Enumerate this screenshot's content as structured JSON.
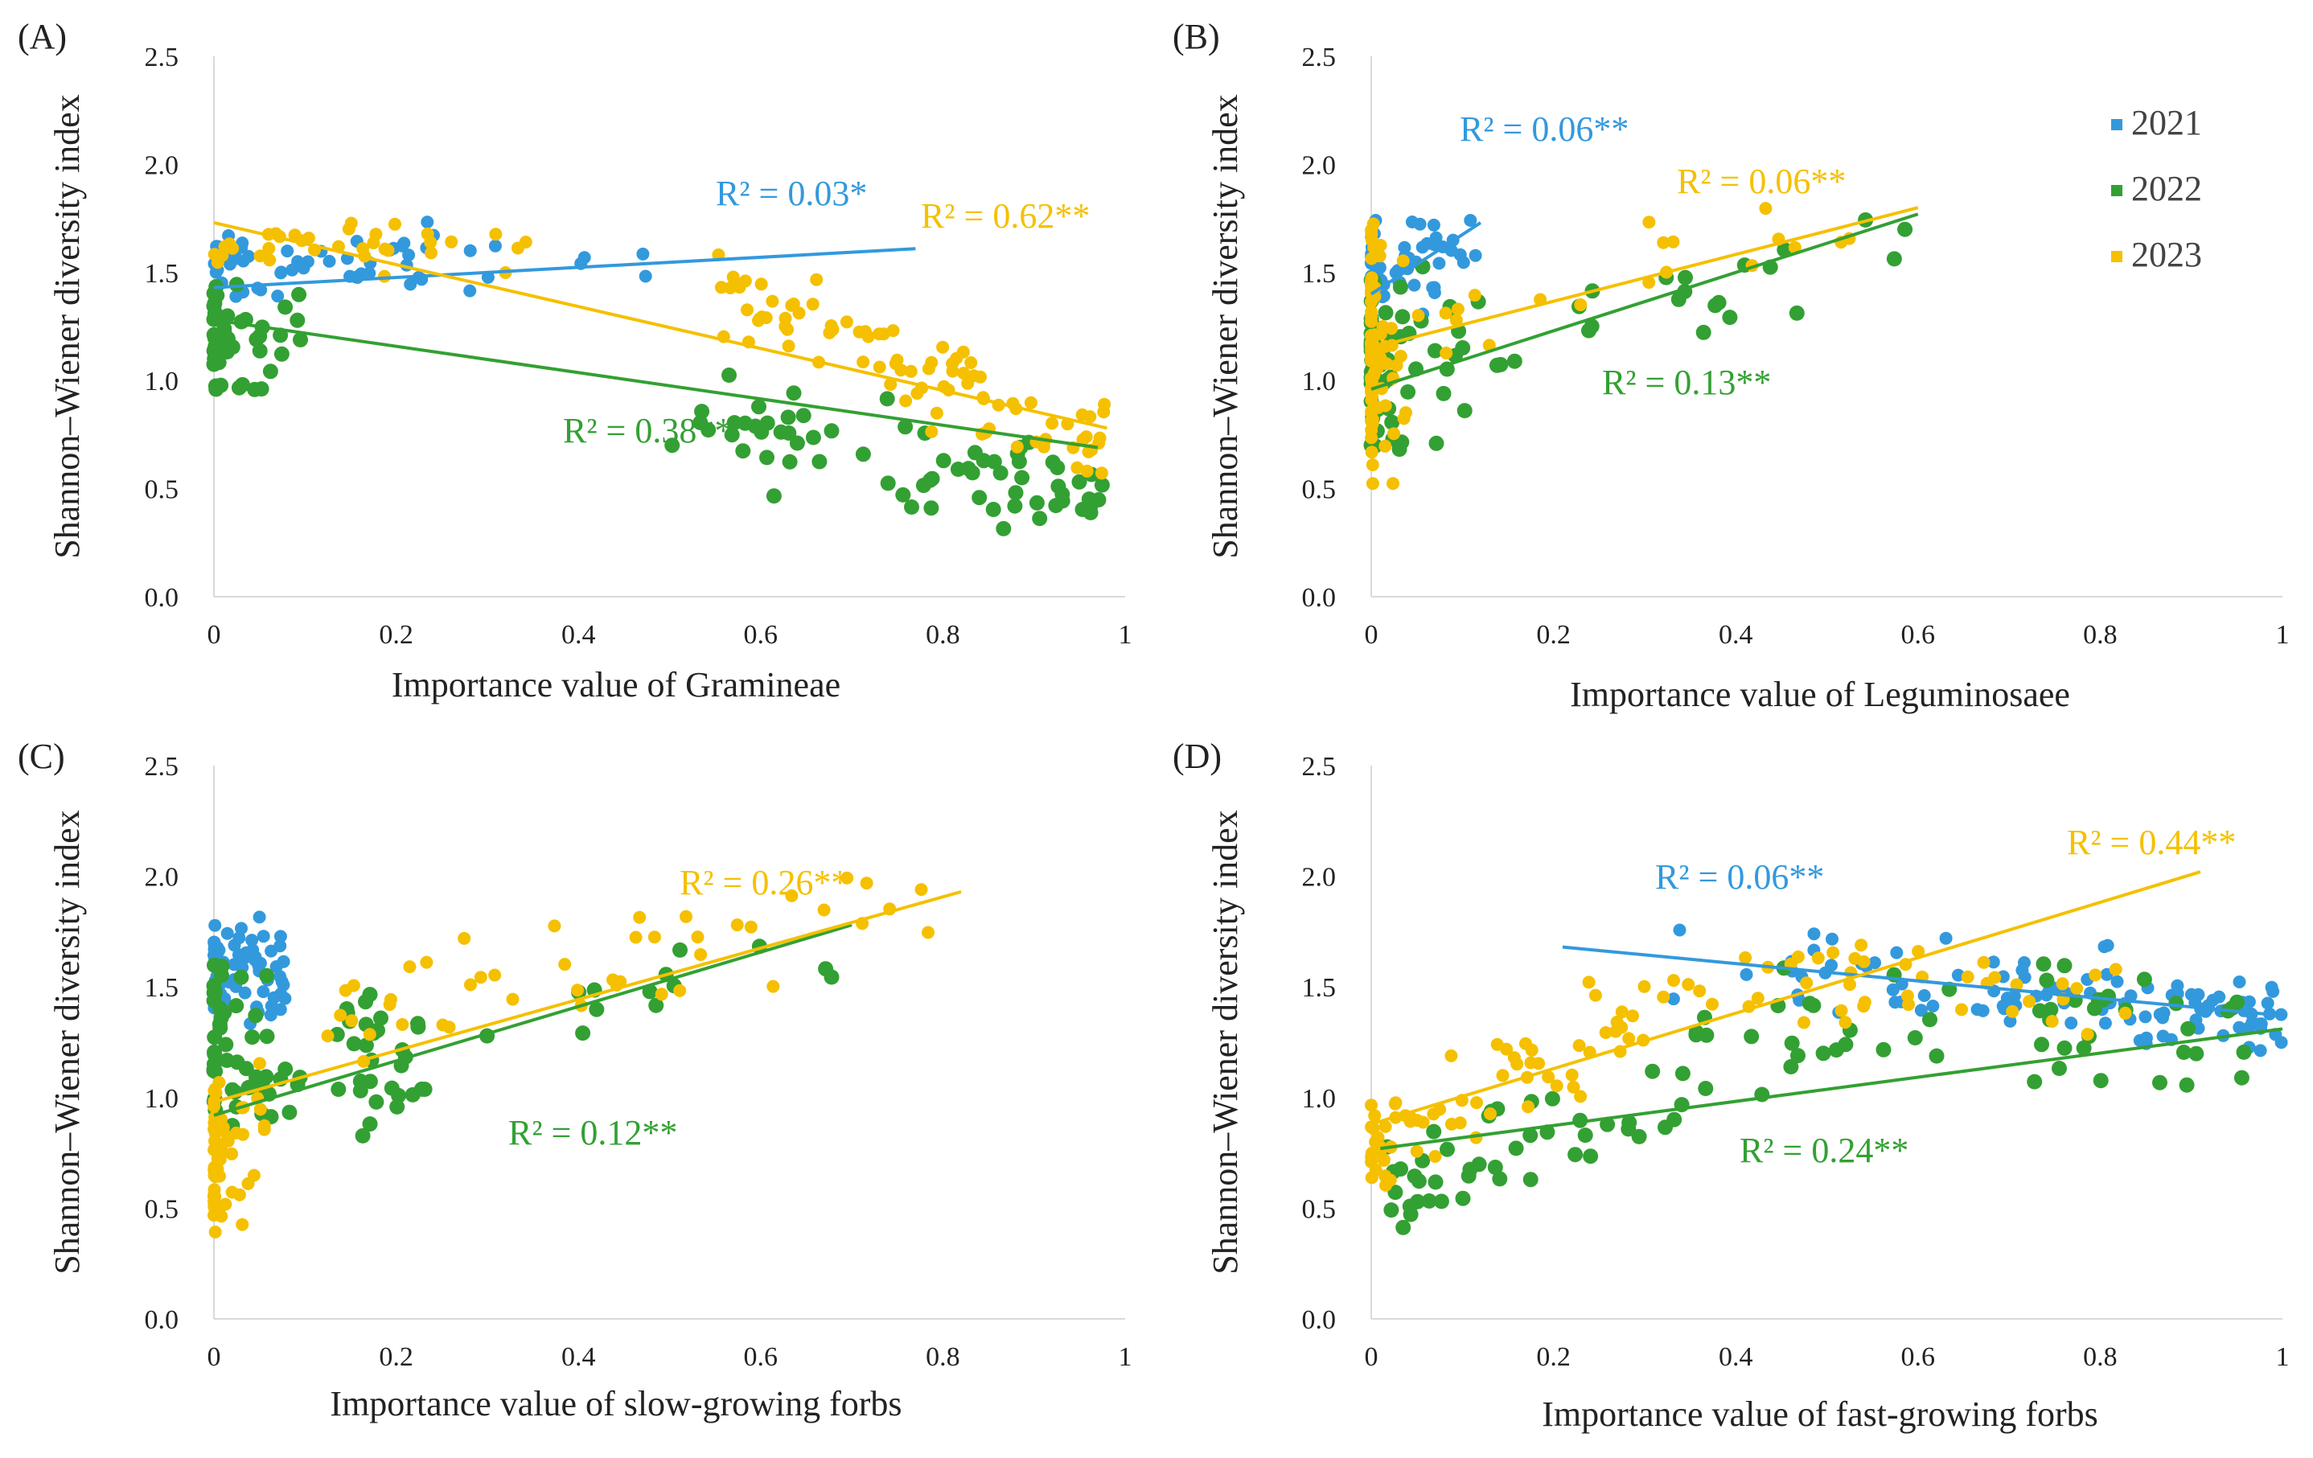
{
  "colors": {
    "y2021": "#3399dd",
    "y2022": "#33a033",
    "y2023": "#f5c000",
    "axis": "#d9d9d9",
    "text": "#222222"
  },
  "legend": [
    "2021",
    "2022",
    "2023"
  ],
  "chart_data": [
    {
      "panel": "(A)",
      "type": "scatter",
      "xlabel": "Importance value of Gramineae",
      "ylabel": "Shannon–Wiener diversity index",
      "xlim": [
        0,
        1
      ],
      "ylim": [
        0,
        2.5
      ],
      "xticks": [
        "0",
        "0.2",
        "0.4",
        "0.6",
        "0.8",
        "1"
      ],
      "yticks": [
        "0.0",
        "0.5",
        "1.0",
        "1.5",
        "2.0",
        "2.5"
      ],
      "series": [
        {
          "name": "2021",
          "trend": [
            [
              0,
              1.43
            ],
            [
              0.77,
              1.61
            ]
          ],
          "r2": "R² = 0.03*"
        },
        {
          "name": "2022",
          "trend": [
            [
              0,
              1.28
            ],
            [
              0.97,
              0.69
            ]
          ],
          "r2": "R² = 0.38**"
        },
        {
          "name": "2023",
          "trend": [
            [
              0,
              1.73
            ],
            [
              0.98,
              0.78
            ]
          ],
          "r2": "R² = 0.62**"
        }
      ]
    },
    {
      "panel": "(B)",
      "type": "scatter",
      "xlabel": "Importance value of Leguminosaee",
      "ylabel": "Shannon–Wiener diversity index",
      "xlim": [
        0,
        1
      ],
      "ylim": [
        0,
        2.5
      ],
      "xticks": [
        "0",
        "0.2",
        "0.4",
        "0.6",
        "0.8",
        "1"
      ],
      "yticks": [
        "0.0",
        "0.5",
        "1.0",
        "1.5",
        "2.0",
        "2.5"
      ],
      "series": [
        {
          "name": "2021",
          "trend": [
            [
              0,
              1.4
            ],
            [
              0.12,
              1.73
            ]
          ],
          "r2": "R² = 0.06**"
        },
        {
          "name": "2022",
          "trend": [
            [
              0,
              0.96
            ],
            [
              0.6,
              1.77
            ]
          ],
          "r2": "R² = 0.13**"
        },
        {
          "name": "2023",
          "trend": [
            [
              0,
              1.15
            ],
            [
              0.6,
              1.8
            ]
          ],
          "r2": "R² = 0.06**"
        }
      ]
    },
    {
      "panel": "(C)",
      "type": "scatter",
      "xlabel": "Importance value of slow-growing forbs",
      "ylabel": "Shannon–Wiener diversity index",
      "xlim": [
        0,
        1
      ],
      "ylim": [
        0,
        2.5
      ],
      "xticks": [
        "0",
        "0.2",
        "0.4",
        "0.6",
        "0.8",
        "1"
      ],
      "yticks": [
        "0.0",
        "0.5",
        "1.0",
        "1.5",
        "2.0",
        "2.5"
      ],
      "series": [
        {
          "name": "2021",
          "trend": null,
          "r2": null
        },
        {
          "name": "2022",
          "trend": [
            [
              0,
              0.92
            ],
            [
              0.7,
              1.78
            ]
          ],
          "r2": "R² = 0.12**"
        },
        {
          "name": "2023",
          "trend": [
            [
              0,
              0.98
            ],
            [
              0.82,
              1.93
            ]
          ],
          "r2": "R² = 0.26**"
        }
      ]
    },
    {
      "panel": "(D)",
      "type": "scatter",
      "xlabel": "Importance value of fast-growing forbs",
      "ylabel": "Shannon–Wiener diversity index",
      "xlim": [
        0,
        1
      ],
      "ylim": [
        0,
        2.5
      ],
      "xticks": [
        "0",
        "0.2",
        "0.4",
        "0.6",
        "0.8",
        "1"
      ],
      "yticks": [
        "0.0",
        "0.5",
        "1.0",
        "1.5",
        "2.0",
        "2.5"
      ],
      "series": [
        {
          "name": "2021",
          "trend": [
            [
              0.21,
              1.68
            ],
            [
              1.0,
              1.37
            ]
          ],
          "r2": "R² = 0.06**"
        },
        {
          "name": "2022",
          "trend": [
            [
              0.01,
              0.77
            ],
            [
              1.0,
              1.31
            ]
          ],
          "r2": "R² = 0.24**"
        },
        {
          "name": "2023",
          "trend": [
            [
              0,
              0.88
            ],
            [
              0.91,
              2.02
            ]
          ],
          "r2": "R² = 0.44**"
        }
      ]
    }
  ]
}
